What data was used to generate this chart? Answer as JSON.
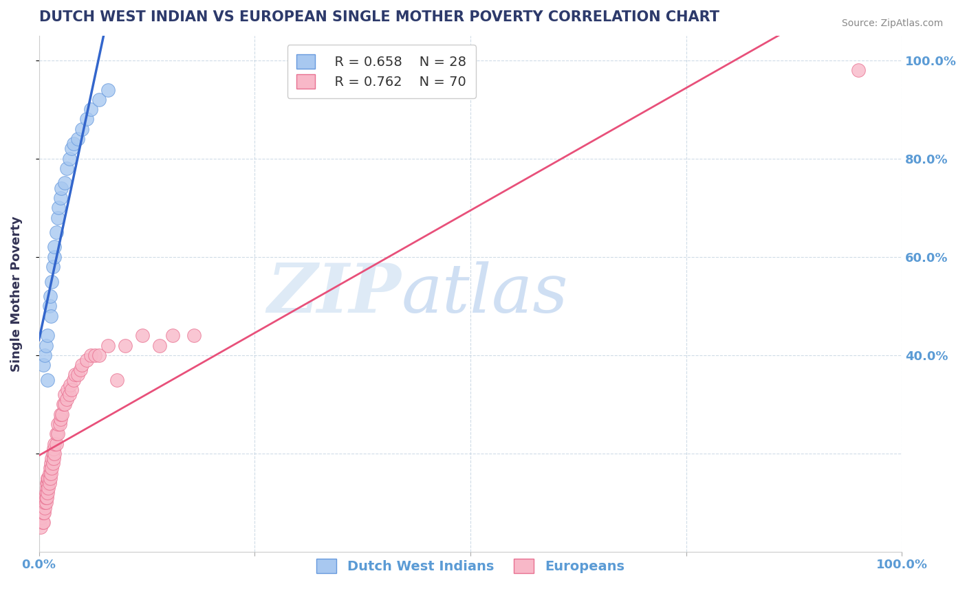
{
  "title": "DUTCH WEST INDIAN VS EUROPEAN SINGLE MOTHER POVERTY CORRELATION CHART",
  "source": "Source: ZipAtlas.com",
  "ylabel": "Single Mother Poverty",
  "xlim": [
    0,
    1.0
  ],
  "ylim": [
    0,
    1.05
  ],
  "legend_r1": "R = 0.658",
  "legend_n1": "N = 28",
  "legend_r2": "R = 0.762",
  "legend_n2": "N = 70",
  "blue_color": "#A8C8F0",
  "blue_edge_color": "#6699DD",
  "pink_color": "#F8B8C8",
  "pink_edge_color": "#E87090",
  "blue_line_color": "#3366CC",
  "pink_line_color": "#E8507A",
  "watermark_zip": "ZIP",
  "watermark_atlas": "atlas",
  "title_color": "#2D3A6B",
  "axis_label_color": "#333355",
  "tick_color": "#5B9BD5",
  "source_color": "#888888",
  "blue_scatter": [
    [
      0.005,
      0.38
    ],
    [
      0.007,
      0.4
    ],
    [
      0.008,
      0.42
    ],
    [
      0.01,
      0.44
    ],
    [
      0.01,
      0.35
    ],
    [
      0.012,
      0.5
    ],
    [
      0.013,
      0.52
    ],
    [
      0.014,
      0.48
    ],
    [
      0.015,
      0.55
    ],
    [
      0.016,
      0.58
    ],
    [
      0.018,
      0.6
    ],
    [
      0.018,
      0.62
    ],
    [
      0.02,
      0.65
    ],
    [
      0.022,
      0.68
    ],
    [
      0.023,
      0.7
    ],
    [
      0.025,
      0.72
    ],
    [
      0.026,
      0.74
    ],
    [
      0.03,
      0.75
    ],
    [
      0.032,
      0.78
    ],
    [
      0.035,
      0.8
    ],
    [
      0.038,
      0.82
    ],
    [
      0.04,
      0.83
    ],
    [
      0.045,
      0.84
    ],
    [
      0.05,
      0.86
    ],
    [
      0.055,
      0.88
    ],
    [
      0.06,
      0.9
    ],
    [
      0.07,
      0.92
    ],
    [
      0.08,
      0.94
    ]
  ],
  "pink_scatter": [
    [
      0.002,
      0.05
    ],
    [
      0.003,
      0.07
    ],
    [
      0.004,
      0.06
    ],
    [
      0.004,
      0.08
    ],
    [
      0.005,
      0.06
    ],
    [
      0.005,
      0.08
    ],
    [
      0.005,
      0.1
    ],
    [
      0.006,
      0.08
    ],
    [
      0.006,
      0.1
    ],
    [
      0.007,
      0.09
    ],
    [
      0.007,
      0.1
    ],
    [
      0.007,
      0.11
    ],
    [
      0.008,
      0.1
    ],
    [
      0.008,
      0.11
    ],
    [
      0.008,
      0.12
    ],
    [
      0.009,
      0.11
    ],
    [
      0.009,
      0.13
    ],
    [
      0.009,
      0.14
    ],
    [
      0.01,
      0.12
    ],
    [
      0.01,
      0.14
    ],
    [
      0.01,
      0.15
    ],
    [
      0.011,
      0.13
    ],
    [
      0.011,
      0.15
    ],
    [
      0.012,
      0.14
    ],
    [
      0.012,
      0.16
    ],
    [
      0.013,
      0.15
    ],
    [
      0.013,
      0.17
    ],
    [
      0.014,
      0.16
    ],
    [
      0.014,
      0.18
    ],
    [
      0.015,
      0.17
    ],
    [
      0.015,
      0.19
    ],
    [
      0.016,
      0.18
    ],
    [
      0.016,
      0.2
    ],
    [
      0.017,
      0.19
    ],
    [
      0.017,
      0.21
    ],
    [
      0.018,
      0.2
    ],
    [
      0.018,
      0.22
    ],
    [
      0.02,
      0.22
    ],
    [
      0.02,
      0.24
    ],
    [
      0.022,
      0.24
    ],
    [
      0.022,
      0.26
    ],
    [
      0.024,
      0.26
    ],
    [
      0.025,
      0.27
    ],
    [
      0.025,
      0.28
    ],
    [
      0.027,
      0.28
    ],
    [
      0.028,
      0.3
    ],
    [
      0.03,
      0.3
    ],
    [
      0.03,
      0.32
    ],
    [
      0.032,
      0.31
    ],
    [
      0.033,
      0.33
    ],
    [
      0.035,
      0.32
    ],
    [
      0.036,
      0.34
    ],
    [
      0.038,
      0.33
    ],
    [
      0.04,
      0.35
    ],
    [
      0.042,
      0.36
    ],
    [
      0.045,
      0.36
    ],
    [
      0.048,
      0.37
    ],
    [
      0.05,
      0.38
    ],
    [
      0.055,
      0.39
    ],
    [
      0.06,
      0.4
    ],
    [
      0.065,
      0.4
    ],
    [
      0.07,
      0.4
    ],
    [
      0.08,
      0.42
    ],
    [
      0.09,
      0.35
    ],
    [
      0.1,
      0.42
    ],
    [
      0.12,
      0.44
    ],
    [
      0.14,
      0.42
    ],
    [
      0.155,
      0.44
    ],
    [
      0.18,
      0.44
    ],
    [
      0.95,
      0.98
    ]
  ],
  "blue_line_x": [
    0.0,
    0.085
  ],
  "pink_line_x": [
    0.0,
    0.95
  ]
}
